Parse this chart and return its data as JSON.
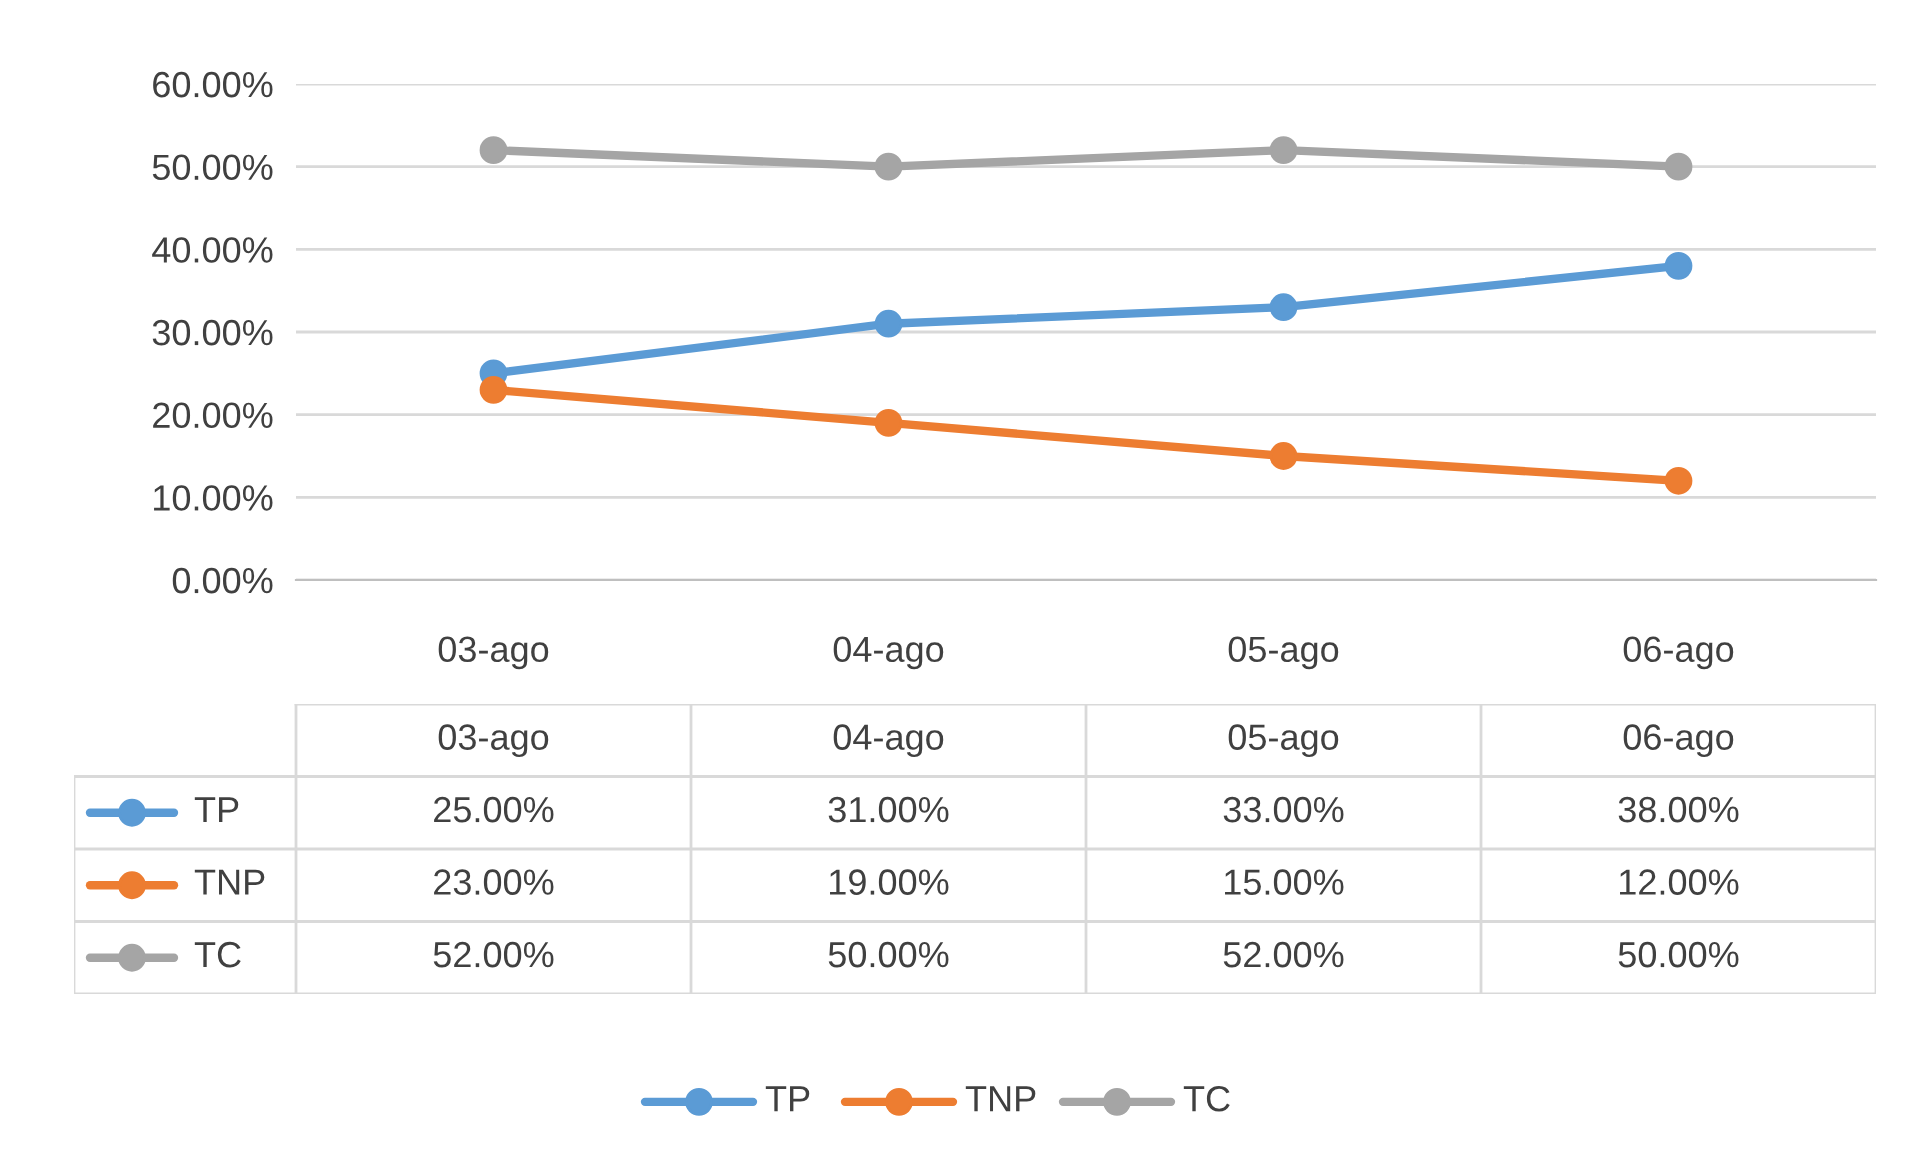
{
  "chart_data": {
    "type": "line",
    "categories": [
      "03-ago",
      "04-ago",
      "05-ago",
      "06-ago"
    ],
    "series": [
      {
        "name": "TP",
        "color": "#5b9bd5",
        "values": [
          25,
          31,
          33,
          38
        ],
        "value_labels": [
          "25.00%",
          "31.00%",
          "33.00%",
          "38.00%"
        ]
      },
      {
        "name": "TNP",
        "color": "#ed7d31",
        "values": [
          23,
          19,
          15,
          12
        ],
        "value_labels": [
          "23.00%",
          "19.00%",
          "15.00%",
          "12.00%"
        ]
      },
      {
        "name": "TC",
        "color": "#a5a5a5",
        "values": [
          52,
          50,
          52,
          50
        ],
        "value_labels": [
          "52.00%",
          "50.00%",
          "52.00%",
          "50.00%"
        ]
      }
    ],
    "ylim": [
      0,
      60
    ],
    "yticks": [
      {
        "value": 0,
        "label": "0.00%"
      },
      {
        "value": 10,
        "label": "10.00%"
      },
      {
        "value": 20,
        "label": "20.00%"
      },
      {
        "value": 30,
        "label": "30.00%"
      },
      {
        "value": 40,
        "label": "40.00%"
      },
      {
        "value": 50,
        "label": "50.00%"
      },
      {
        "value": 60,
        "label": "60.00%"
      }
    ],
    "grid": "y",
    "legend": "bottom",
    "marker": "circle",
    "line_style": "solid"
  }
}
